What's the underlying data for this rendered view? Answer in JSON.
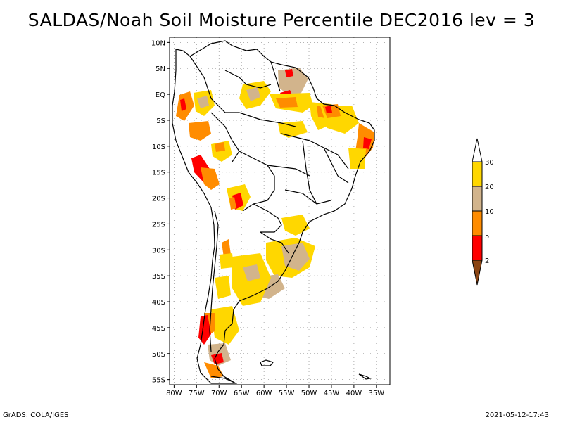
{
  "title": "SALDAS/Noah Soil Moisture Percentile DEC2016 lev = 3",
  "footer_left": "GrADS: COLA/IGES",
  "footer_right": "2021-05-12-17:43",
  "map": {
    "projection": "latlon",
    "lon_range": [
      -81,
      -32
    ],
    "lat_range": [
      -56,
      11
    ],
    "gridlines": true,
    "lat_ticks": [
      {
        "value": 10,
        "label": "10N"
      },
      {
        "value": 5,
        "label": "5N"
      },
      {
        "value": 0,
        "label": "EQ"
      },
      {
        "value": -5,
        "label": "5S"
      },
      {
        "value": -10,
        "label": "10S"
      },
      {
        "value": -15,
        "label": "15S"
      },
      {
        "value": -20,
        "label": "20S"
      },
      {
        "value": -25,
        "label": "25S"
      },
      {
        "value": -30,
        "label": "30S"
      },
      {
        "value": -35,
        "label": "35S"
      },
      {
        "value": -40,
        "label": "40S"
      },
      {
        "value": -45,
        "label": "45S"
      },
      {
        "value": -50,
        "label": "50S"
      },
      {
        "value": -55,
        "label": "55S"
      }
    ],
    "lon_ticks": [
      {
        "value": -80,
        "label": "80W"
      },
      {
        "value": -75,
        "label": "75W"
      },
      {
        "value": -70,
        "label": "70W"
      },
      {
        "value": -65,
        "label": "65W"
      },
      {
        "value": -60,
        "label": "60W"
      },
      {
        "value": -55,
        "label": "55W"
      },
      {
        "value": -50,
        "label": "50W"
      },
      {
        "value": -45,
        "label": "45W"
      },
      {
        "value": -40,
        "label": "40W"
      },
      {
        "value": -35,
        "label": "35W"
      }
    ]
  },
  "legend": {
    "labels": [
      "2",
      "5",
      "10",
      "20",
      "30"
    ],
    "colors": [
      "#8b4513",
      "#ff0000",
      "#ff8c00",
      "#d2b48c",
      "#ffd700",
      "#ffffff"
    ]
  },
  "colors": {
    "coast": "#000000",
    "grid": "#9a9a9a",
    "yellow": "#ffd700",
    "tan": "#d2b48c",
    "orange": "#ff8c00",
    "red": "#ff0000"
  }
}
